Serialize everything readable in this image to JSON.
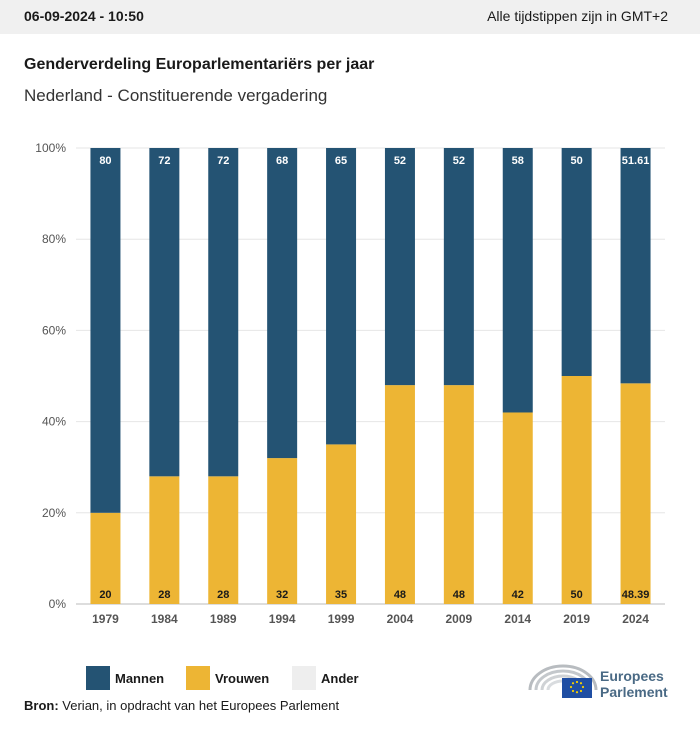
{
  "header": {
    "datetime": "06-09-2024 - 10:50",
    "timezone": "Alle tijdstippen zijn in GMT+2"
  },
  "title": "Genderverdeling Europarlementariërs per jaar",
  "subtitle": "Nederland - Constituerende vergadering",
  "legend": [
    {
      "label": "Mannen",
      "color": "#245373"
    },
    {
      "label": "Vrouwen",
      "color": "#edb534"
    },
    {
      "label": "Ander",
      "color": "#eeeeee"
    }
  ],
  "source": {
    "label": "Bron:",
    "text": "Verian, in opdracht van het Europees Parlement"
  },
  "logo": {
    "line1": "Europees",
    "line2": "Parlement"
  },
  "chart_data": {
    "type": "bar",
    "stacked": true,
    "categories": [
      "1979",
      "1984",
      "1989",
      "1994",
      "1999",
      "2004",
      "2009",
      "2014",
      "2019",
      "2024"
    ],
    "series": [
      {
        "name": "Vrouwen",
        "color": "#edb534",
        "values": [
          20,
          28,
          28,
          32,
          35,
          48,
          48,
          42,
          50,
          48.39
        ],
        "labels": [
          "20",
          "28",
          "28",
          "32",
          "35",
          "48",
          "48",
          "42",
          "50",
          "48.39"
        ]
      },
      {
        "name": "Mannen",
        "color": "#245373",
        "values": [
          80,
          72,
          72,
          68,
          65,
          52,
          52,
          58,
          50,
          51.61
        ],
        "labels": [
          "80",
          "72",
          "72",
          "68",
          "65",
          "52",
          "52",
          "58",
          "50",
          "51.61"
        ]
      }
    ],
    "yticks": [
      "0%",
      "20%",
      "40%",
      "60%",
      "80%",
      "100%"
    ],
    "ylim": [
      0,
      100
    ],
    "grid": true
  }
}
